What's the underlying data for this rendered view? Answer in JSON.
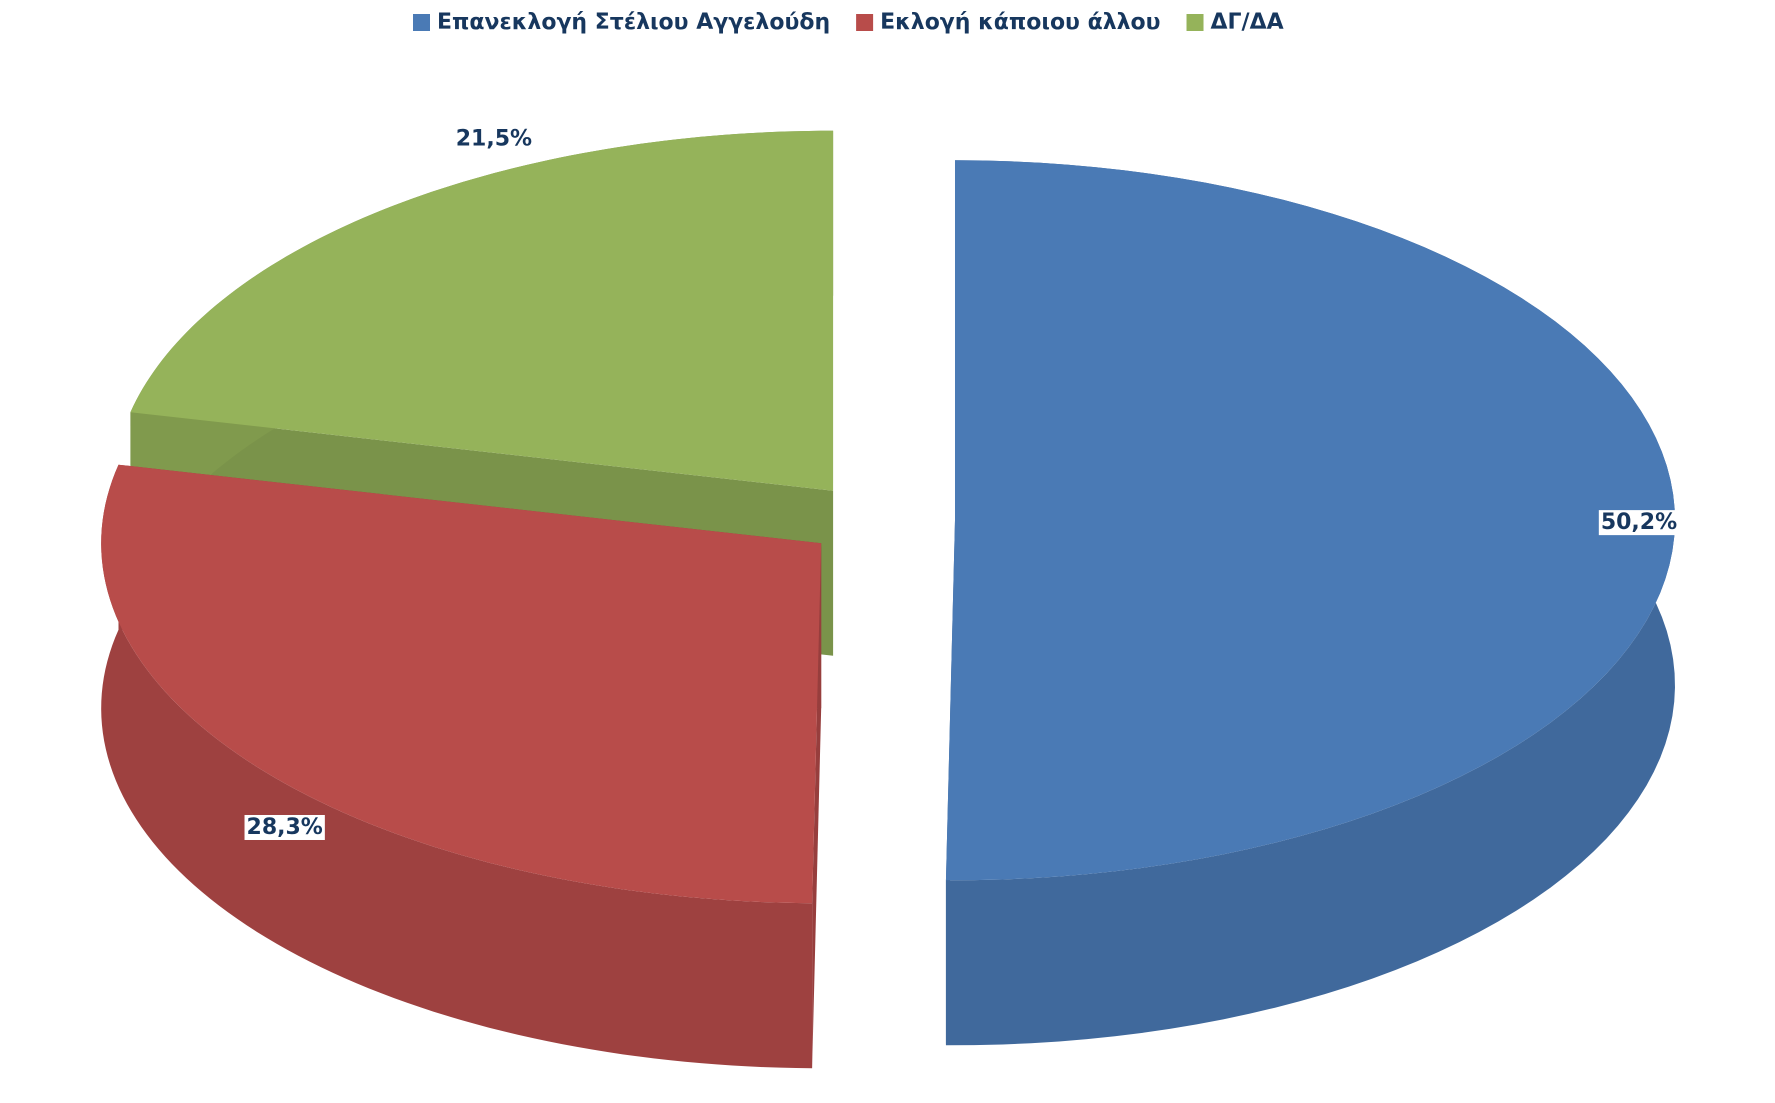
{
  "chart_data": {
    "type": "pie3d",
    "categories": [
      "Επανεκλογή Στέλιου Αγγελούδη",
      "Εκλογή κάποιου άλλου",
      "ΔΓ/ΔΑ"
    ],
    "values": [
      50.2,
      28.3,
      21.5
    ],
    "value_labels": [
      "50,2%",
      "28,3%",
      "21,5%"
    ],
    "colors": [
      "#4a7ab5",
      "#b84c4a",
      "#95b35a"
    ],
    "legend": "top"
  }
}
